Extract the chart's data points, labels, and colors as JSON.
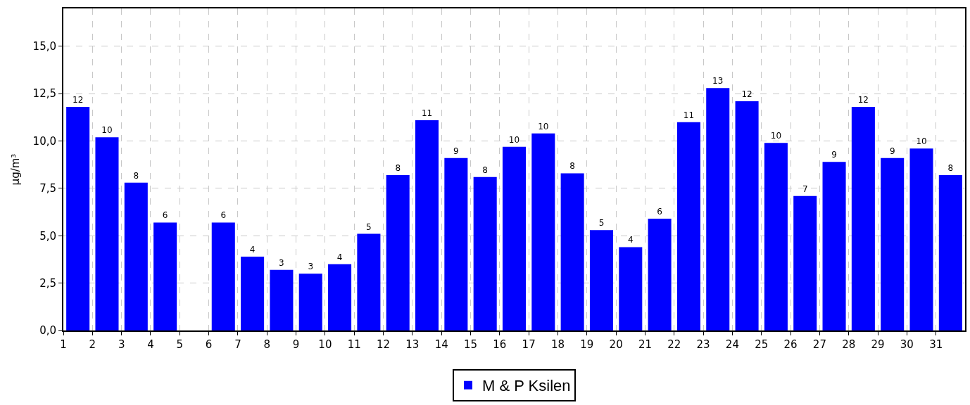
{
  "chart_data": {
    "type": "bar",
    "ylabel": "µg/m³",
    "x": [
      1.5,
      2.5,
      3.5,
      4.5,
      5.5,
      6.5,
      7.5,
      8.5,
      9.5,
      10.5,
      11.5,
      12.5,
      13.5,
      14.5,
      15.5,
      16.5,
      17.5,
      18.5,
      19.5,
      20.5,
      21.5,
      22.5,
      23.5,
      24.5,
      25.5,
      26.5,
      27.5,
      28.5,
      29.5,
      30.5,
      31.5
    ],
    "series": [
      {
        "name": "M & P Ksilen",
        "color": "#0000ff",
        "values": [
          11.8,
          10.2,
          7.8,
          5.7,
          null,
          5.7,
          3.9,
          3.2,
          3.0,
          3.5,
          5.1,
          8.2,
          11.1,
          9.1,
          8.1,
          9.7,
          10.4,
          8.3,
          5.3,
          4.4,
          5.9,
          11.0,
          12.8,
          12.1,
          9.9,
          7.1,
          8.9,
          11.8,
          9.1,
          9.6,
          8.2
        ],
        "value_labels": [
          "12",
          "10",
          "8",
          "6",
          null,
          "6",
          "4",
          "3",
          "3",
          "4",
          "5",
          "8",
          "11",
          "9",
          "8",
          "10",
          "10",
          "8",
          "5",
          "4",
          "6",
          "11",
          "13",
          "12",
          "10",
          "7",
          "9",
          "12",
          "9",
          "10",
          "8"
        ]
      }
    ],
    "xlim": [
      1,
      32
    ],
    "xticks": [
      1,
      2,
      3,
      4,
      5,
      6,
      7,
      8,
      9,
      10,
      11,
      12,
      13,
      14,
      15,
      16,
      17,
      18,
      19,
      20,
      21,
      22,
      23,
      24,
      25,
      26,
      27,
      28,
      29,
      30,
      31
    ],
    "ylim": [
      0,
      17
    ],
    "yticks": [
      {
        "value": 0,
        "label": "0,0"
      },
      {
        "value": 2.5,
        "label": "2,5"
      },
      {
        "value": 5,
        "label": "5,0"
      },
      {
        "value": 7.5,
        "label": "7,5"
      },
      {
        "value": 10,
        "label": "10,0"
      },
      {
        "value": 12.5,
        "label": "12,5"
      },
      {
        "value": 15,
        "label": "15,0"
      }
    ],
    "grid": true,
    "legend": "bottom"
  }
}
